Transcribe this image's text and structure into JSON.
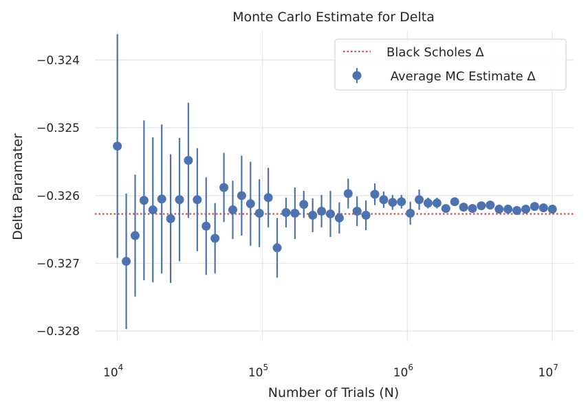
{
  "chart_data": {
    "type": "scatter",
    "title": "Monte Carlo Estimate for Delta",
    "xlabel": "Number of Trials (N)",
    "ylabel": "Delta Paramater",
    "x_scale": "log",
    "xlim": [
      7000,
      14000000
    ],
    "ylim": [
      -0.32815,
      -0.32357
    ],
    "x_ticks": [
      10000,
      100000,
      1000000,
      10000000
    ],
    "x_tick_labels": [
      {
        "base": "10",
        "exp": "4"
      },
      {
        "base": "10",
        "exp": "5"
      },
      {
        "base": "10",
        "exp": "6"
      },
      {
        "base": "10",
        "exp": "7"
      }
    ],
    "y_ticks": [
      -0.328,
      -0.327,
      -0.326,
      -0.325,
      -0.324
    ],
    "y_tick_labels": [
      "−0.328",
      "−0.327",
      "−0.326",
      "−0.325",
      "−0.324"
    ],
    "grid": true,
    "legend": {
      "placement": "top-right",
      "entries": [
        "Black Scholes Δ",
        " Average MC Estimate Δ"
      ]
    },
    "reference_line": {
      "name": "Black Scholes Δ",
      "y": -0.32627,
      "color": "#c44e52",
      "style": "dotted"
    },
    "series": [
      {
        "name": " Average MC Estimate Δ",
        "color": "#4c72b0",
        "x": [
          10000,
          11514,
          13257,
          15264,
          17575,
          20236,
          23300,
          26827,
          30888,
          35565,
          40949,
          47149,
          54287,
          62506,
          71969,
          82864,
          95409,
          109854,
          126485,
          145635,
          167683,
          193070,
          222300,
          255955,
          294705,
          339322,
          390694,
          449843,
          517947,
          596362,
          686649,
          790604,
          910298,
          1048113,
          1206793,
          1389495,
          1599859,
          1842070,
          2120951,
          2442053,
          2811769,
          3237458,
          3727594,
          4291934,
          4941713,
          5689866,
          6551286,
          7543120,
          8685113,
          10000000
        ],
        "y": [
          -0.32527,
          -0.32697,
          -0.32659,
          -0.32607,
          -0.32621,
          -0.32605,
          -0.32634,
          -0.32606,
          -0.32548,
          -0.32606,
          -0.32645,
          -0.32663,
          -0.32588,
          -0.32621,
          -0.326,
          -0.32612,
          -0.32626,
          -0.32603,
          -0.32677,
          -0.32625,
          -0.32626,
          -0.32613,
          -0.32629,
          -0.32623,
          -0.32627,
          -0.32633,
          -0.32597,
          -0.32623,
          -0.32629,
          -0.32598,
          -0.32606,
          -0.3261,
          -0.32609,
          -0.32626,
          -0.32606,
          -0.32611,
          -0.32611,
          -0.32619,
          -0.32609,
          -0.32617,
          -0.32619,
          -0.32615,
          -0.32614,
          -0.3262,
          -0.3262,
          -0.32622,
          -0.3262,
          -0.32616,
          -0.32618,
          -0.3262
        ],
        "err": [
          0.00165,
          0.001,
          0.0009,
          0.00118,
          0.00107,
          0.0011,
          0.00095,
          0.00091,
          0.00085,
          0.00076,
          0.00072,
          0.00052,
          0.00051,
          0.00043,
          0.00059,
          0.00062,
          0.0005,
          0.00044,
          0.00044,
          0.00022,
          0.00038,
          0.0002,
          0.00025,
          0.00024,
          0.00034,
          0.00023,
          0.00022,
          0.00022,
          0.00022,
          0.00016,
          0.00012,
          0.00011,
          0.0001,
          0.00017,
          0.00015,
          8e-05,
          8e-05,
          6e-05,
          5e-05,
          5e-05,
          4e-05,
          4e-05,
          3e-05,
          3e-05,
          3e-05,
          2e-05,
          2e-05,
          2e-05,
          2e-05,
          2e-05
        ]
      }
    ]
  }
}
